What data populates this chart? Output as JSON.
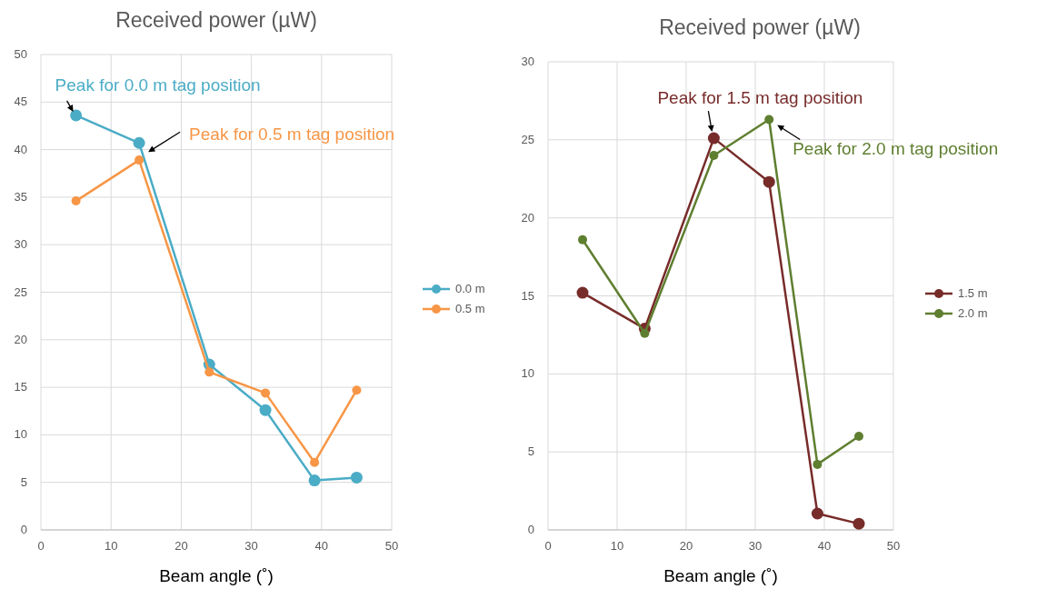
{
  "chart_data": [
    {
      "type": "line",
      "title": "Received power (µW)",
      "xlabel": "Beam angle (˚)",
      "x": [
        5,
        14,
        24,
        32,
        39,
        45
      ],
      "xlim": [
        0,
        50
      ],
      "xticks": [
        0,
        10,
        20,
        30,
        40,
        50
      ],
      "ylim": [
        0,
        50
      ],
      "yticks": [
        0,
        5,
        10,
        15,
        20,
        25,
        30,
        35,
        40,
        45,
        50
      ],
      "grid": true,
      "legend": "right",
      "marker": "circle",
      "series": [
        {
          "name": "0.0 m",
          "color": "#4bacc6",
          "values": [
            43.6,
            40.7,
            17.4,
            12.6,
            5.2,
            5.5
          ]
        },
        {
          "name": "0.5 m",
          "color": "#f79646",
          "values": [
            34.6,
            38.9,
            16.6,
            14.4,
            7.1,
            14.7
          ]
        }
      ],
      "annotations": [
        {
          "text": "Peak for 0.0 m tag position",
          "x": 5,
          "y": 43.6
        },
        {
          "text": "Peak for 0.5 m tag position",
          "x": 14,
          "y": 40.7
        }
      ]
    },
    {
      "type": "line",
      "title": "Received power (µW)",
      "xlabel": "Beam angle (˚)",
      "x": [
        5,
        14,
        24,
        32,
        39,
        45
      ],
      "xlim": [
        0,
        50
      ],
      "xticks": [
        0,
        10,
        20,
        30,
        40,
        50
      ],
      "ylim": [
        0,
        30
      ],
      "yticks": [
        0,
        5,
        10,
        15,
        20,
        25,
        30
      ],
      "grid": true,
      "legend": "right",
      "marker": "circle",
      "series": [
        {
          "name": "1.5 m",
          "color": "#772c2a",
          "values": [
            15.2,
            12.9,
            25.1,
            22.3,
            1.05,
            0.4
          ]
        },
        {
          "name": "2.0 m",
          "color": "#5f7f30",
          "values": [
            18.6,
            12.6,
            24.0,
            26.3,
            4.2,
            6.0
          ]
        }
      ],
      "annotations": [
        {
          "text": "Peak for 1.5 m tag position",
          "x": 24,
          "y": 25.1
        },
        {
          "text": "Peak for 2.0 m tag position",
          "x": 32,
          "y": 26.3
        }
      ]
    }
  ]
}
